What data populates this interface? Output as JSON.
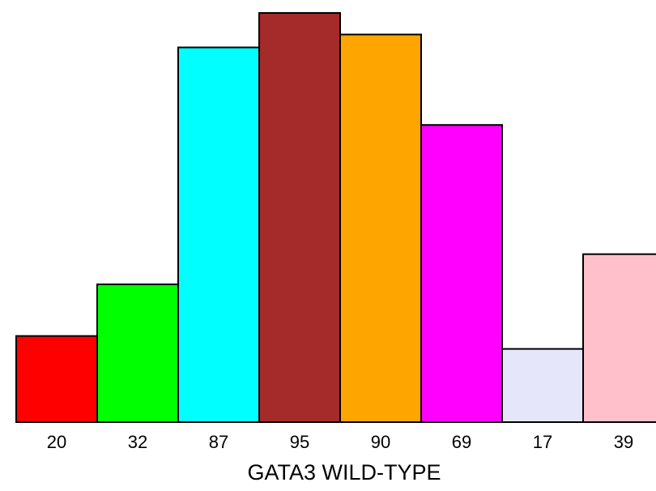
{
  "chart_data": {
    "type": "bar",
    "title": "",
    "xlabel": "GATA3 WILD-TYPE",
    "ylabel": "",
    "categories": [
      "20",
      "32",
      "87",
      "95",
      "90",
      "69",
      "17",
      "39"
    ],
    "values": [
      20,
      32,
      87,
      95,
      90,
      69,
      17,
      39
    ],
    "colors": [
      "#ff0000",
      "#00ff00",
      "#00ffff",
      "#a52a2a",
      "#ffa500",
      "#ff00ff",
      "#e6e6fa",
      "#ffc0cb"
    ],
    "ylim": [
      0,
      95
    ],
    "grid": false,
    "legend": "none",
    "bar_edge_color": "#000000"
  }
}
